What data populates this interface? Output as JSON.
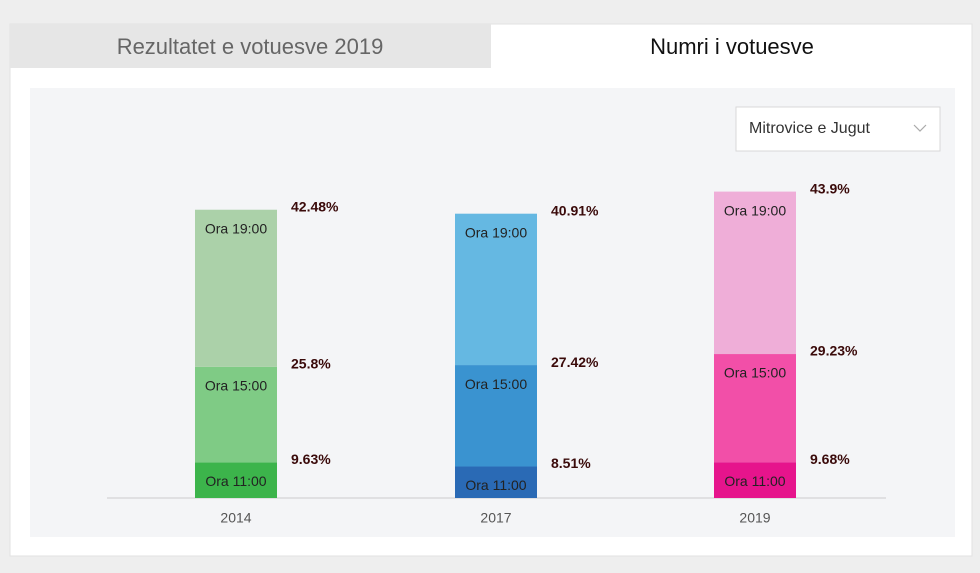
{
  "tabs": [
    "Rezultatet e votuesve 2019",
    "Numri i votuesve"
  ],
  "dropdown": "Mitrovice e Jugut",
  "chart_data": {
    "type": "stacked-bar",
    "categories": [
      "2014",
      "2017",
      "2019"
    ],
    "series": [
      {
        "name": "Ora 11:00",
        "colors": [
          "#3cb44b",
          "#2a6ab5",
          "#e6148c"
        ],
        "values": [
          9.63,
          8.51,
          9.68
        ],
        "value_labels": [
          "9.63%",
          "8.51%",
          "9.68%"
        ]
      },
      {
        "name": "Ora 15:00",
        "colors": [
          "#7fcb85",
          "#3a93d0",
          "#f24fa8"
        ],
        "values": [
          25.8,
          27.42,
          29.23
        ],
        "value_labels": [
          "25.8%",
          "27.42%",
          "29.23%"
        ]
      },
      {
        "name": "Ora 19:00",
        "colors": [
          "#abd1a9",
          "#65b8e2",
          "#efaed8"
        ],
        "values": [
          42.48,
          40.91,
          43.9
        ],
        "value_labels": [
          "42.48%",
          "40.91%",
          "43.9%"
        ]
      }
    ]
  }
}
